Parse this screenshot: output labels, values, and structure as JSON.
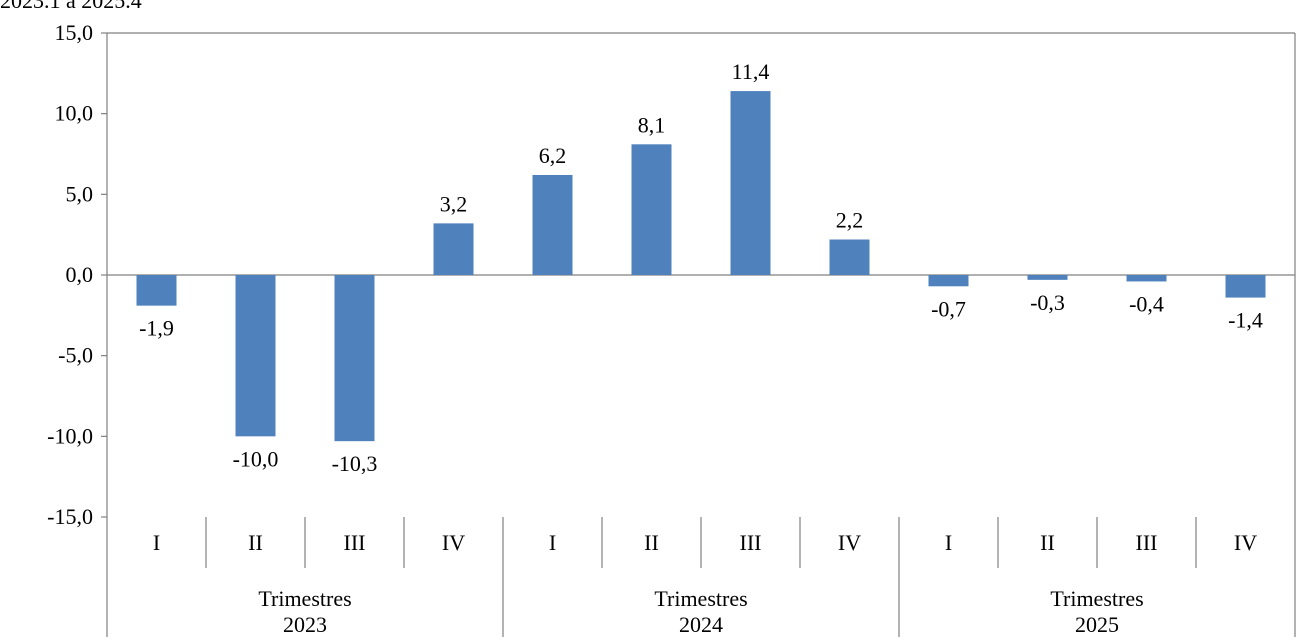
{
  "header": {
    "subtitle_fragment": "2023.1 a 2025.4"
  },
  "chart_data": {
    "type": "bar",
    "title": "",
    "xlabel": "",
    "ylabel": "",
    "ylim": [
      -15,
      15
    ],
    "yticks": [
      "15,0",
      "10,0",
      "5,0",
      "0,0",
      "-5,0",
      "-10,0",
      "-15,0"
    ],
    "ytick_values": [
      15,
      10,
      5,
      0,
      -5,
      -10,
      -15
    ],
    "categories": [
      "I",
      "II",
      "III",
      "IV",
      "I",
      "II",
      "III",
      "IV",
      "I",
      "II",
      "III",
      "IV"
    ],
    "values": [
      -1.9,
      -10.0,
      -10.3,
      3.2,
      6.2,
      8.1,
      11.4,
      2.2,
      -0.7,
      -0.3,
      -0.4,
      -1.4
    ],
    "data_labels": [
      "-1,9",
      "-10,0",
      "-10,3",
      "3,2",
      "6,2",
      "8,1",
      "11,4",
      "2,2",
      "-0,7",
      "-0,3",
      "-0,4",
      "-1,4"
    ],
    "groups": [
      {
        "label_line1": "Trimestres",
        "label_line2": "2023",
        "count": 4
      },
      {
        "label_line1": "Trimestres",
        "label_line2": "2024",
        "count": 4
      },
      {
        "label_line1": "Trimestres",
        "label_line2": "2025",
        "count": 4
      }
    ],
    "bar_color": "#4F81BD",
    "axis_color": "#808080",
    "grid": false,
    "legend": "none"
  }
}
